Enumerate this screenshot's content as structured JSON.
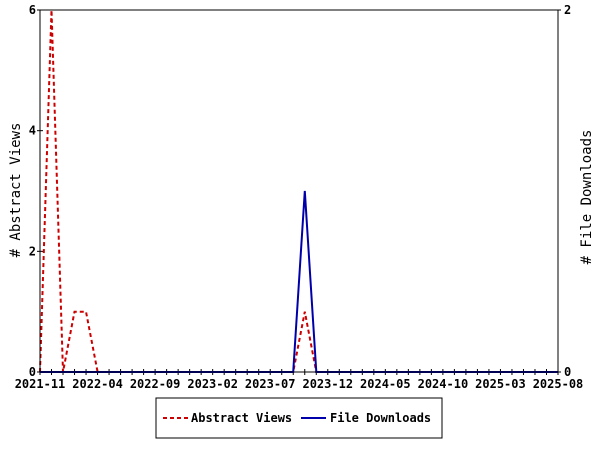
{
  "chart_data": {
    "type": "line",
    "x": [
      "2021-11",
      "2021-12",
      "2022-01",
      "2022-02",
      "2022-03",
      "2022-04",
      "2022-05",
      "2022-06",
      "2022-07",
      "2022-08",
      "2022-09",
      "2022-10",
      "2022-11",
      "2022-12",
      "2023-01",
      "2023-02",
      "2023-03",
      "2023-04",
      "2023-05",
      "2023-06",
      "2023-07",
      "2023-08",
      "2023-09",
      "2023-10",
      "2023-11",
      "2023-12",
      "2024-01",
      "2024-02",
      "2024-03",
      "2024-04",
      "2024-05",
      "2024-06",
      "2024-07",
      "2024-08",
      "2024-09",
      "2024-10",
      "2024-11",
      "2024-12",
      "2025-01",
      "2025-02",
      "2025-03",
      "2025-04",
      "2025-05",
      "2025-06",
      "2025-07",
      "2025-08"
    ],
    "x_tick_labels": [
      "2021-11",
      "2022-04",
      "2022-09",
      "2023-02",
      "2023-07",
      "2023-12",
      "2024-05",
      "2024-10",
      "2025-03",
      "2025-08"
    ],
    "series": [
      {
        "name": "Abstract Views",
        "axis": "left",
        "color": "#cc0000",
        "dash": "dashed",
        "values": [
          0,
          6,
          0,
          1,
          1,
          0,
          0,
          0,
          0,
          0,
          0,
          0,
          0,
          0,
          0,
          0,
          0,
          0,
          0,
          0,
          0,
          0,
          0,
          1,
          0,
          0,
          0,
          0,
          0,
          0,
          0,
          0,
          0,
          0,
          0,
          0,
          0,
          0,
          0,
          0,
          0,
          0,
          0,
          0,
          0,
          0
        ]
      },
      {
        "name": "File Downloads",
        "axis": "right",
        "color": "#0000aa",
        "dash": "solid",
        "values": [
          0,
          0,
          0,
          0,
          0,
          0,
          0,
          0,
          0,
          0,
          0,
          0,
          0,
          0,
          0,
          0,
          0,
          0,
          0,
          0,
          0,
          0,
          0,
          1,
          0,
          0,
          0,
          0,
          0,
          0,
          0,
          0,
          0,
          0,
          0,
          0,
          0,
          0,
          0,
          0,
          0,
          0,
          0,
          0,
          0,
          0
        ]
      }
    ],
    "ylabel": "# Abstract Views",
    "y2label": "# File Downloads",
    "ylim": [
      0,
      6
    ],
    "y_ticks": [
      0,
      2,
      4,
      6
    ],
    "y2lim": [
      0,
      2
    ],
    "y2_ticks": [
      0,
      2
    ],
    "legend_position": "bottom"
  }
}
